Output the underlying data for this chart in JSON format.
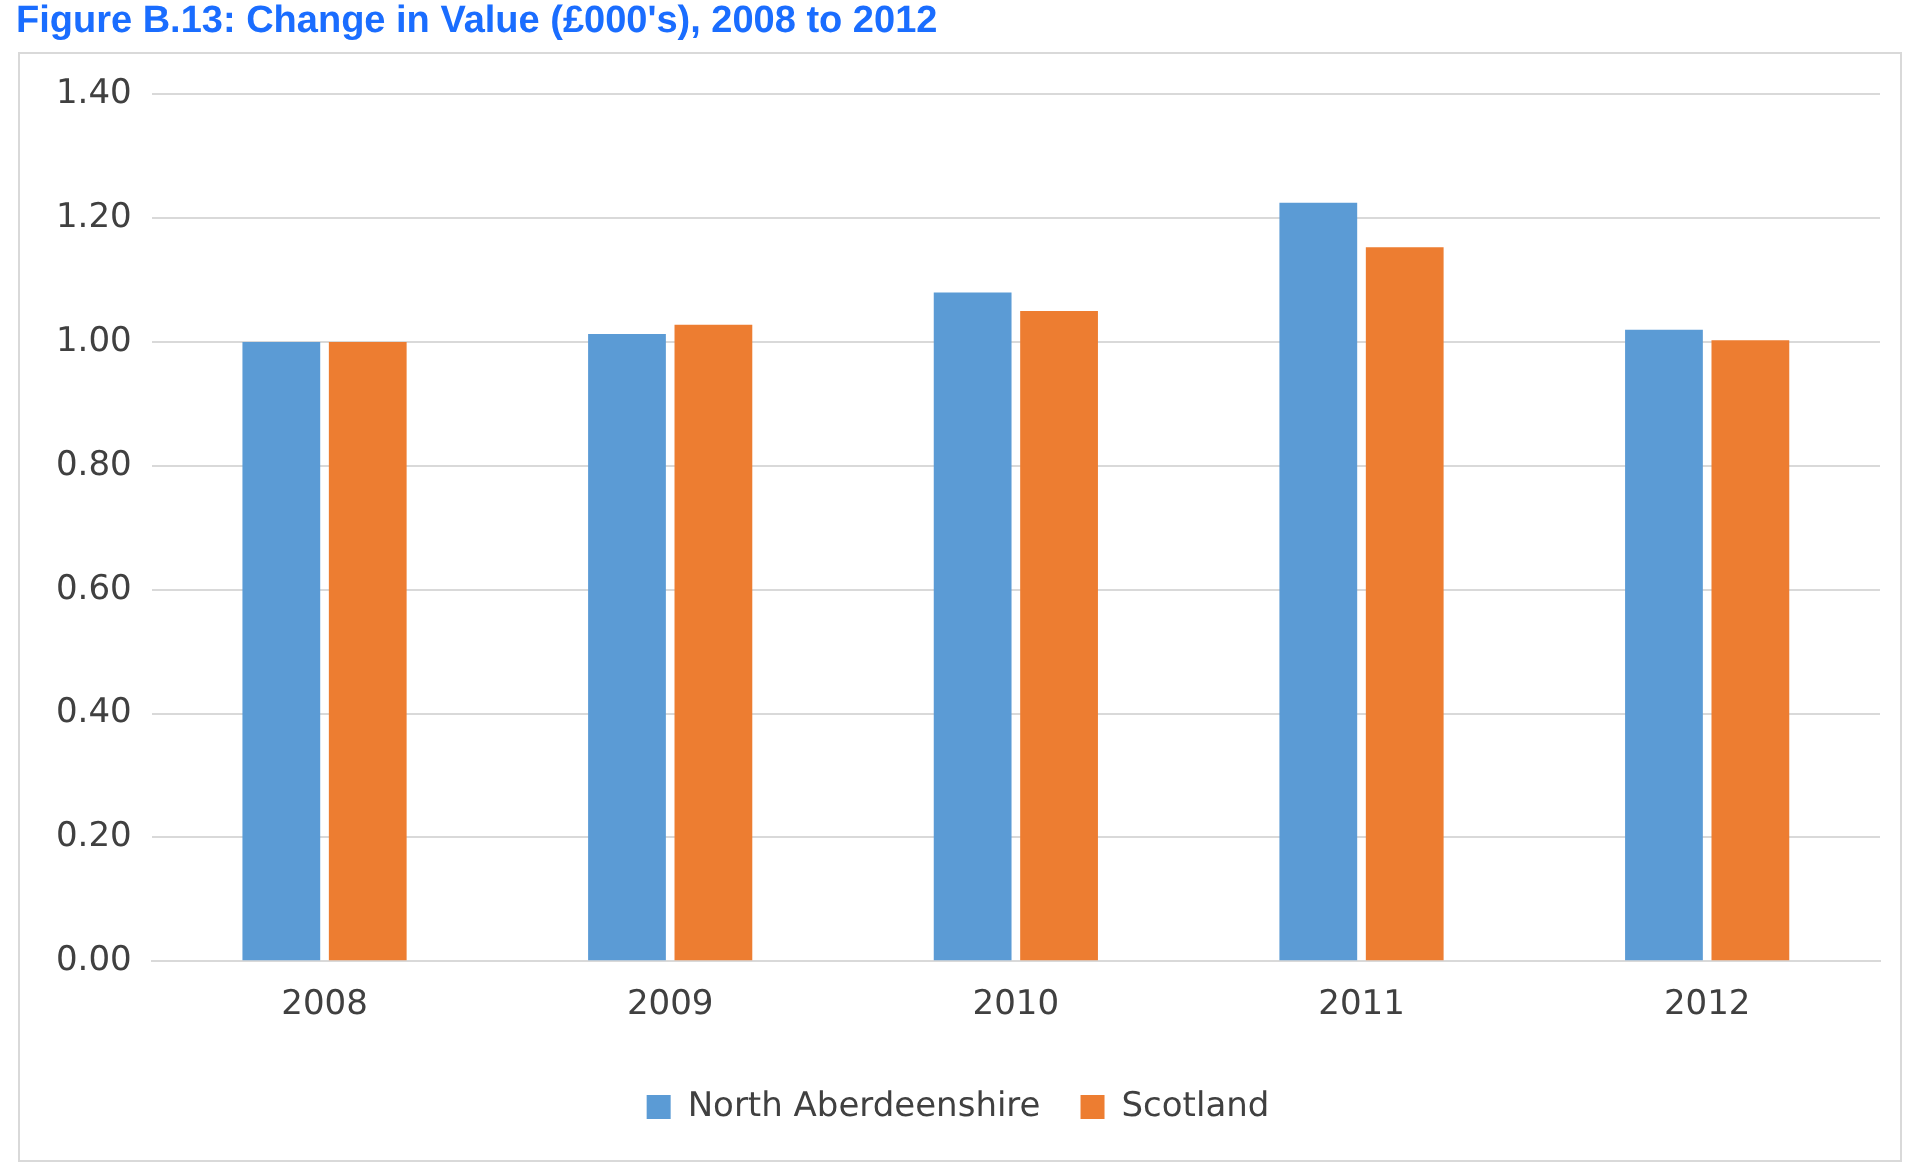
{
  "chart_data": {
    "type": "bar",
    "title": "Figure B.13: Change in Value (£000's), 2008 to 2012",
    "categories": [
      "2008",
      "2009",
      "2010",
      "2011",
      "2012"
    ],
    "series": [
      {
        "name": "North Aberdeenshire",
        "color": "#5b9bd5",
        "values": [
          1.0,
          1.013,
          1.08,
          1.225,
          1.02
        ]
      },
      {
        "name": "Scotland",
        "color": "#ed7d31",
        "values": [
          1.0,
          1.028,
          1.05,
          1.153,
          1.003
        ]
      }
    ],
    "ylim": [
      0,
      1.4
    ],
    "yticks": [
      {
        "value": 0,
        "label": "0.00"
      },
      {
        "value": 0.2,
        "label": "0.20"
      },
      {
        "value": 0.4,
        "label": "0.40"
      },
      {
        "value": 0.6,
        "label": "0.60"
      },
      {
        "value": 0.8,
        "label": "0.80"
      },
      {
        "value": 1,
        "label": "1.00"
      },
      {
        "value": 1.2,
        "label": "1.20"
      },
      {
        "value": 1.4,
        "label": "1.40"
      }
    ],
    "grid": "y",
    "legend": "bottom"
  }
}
